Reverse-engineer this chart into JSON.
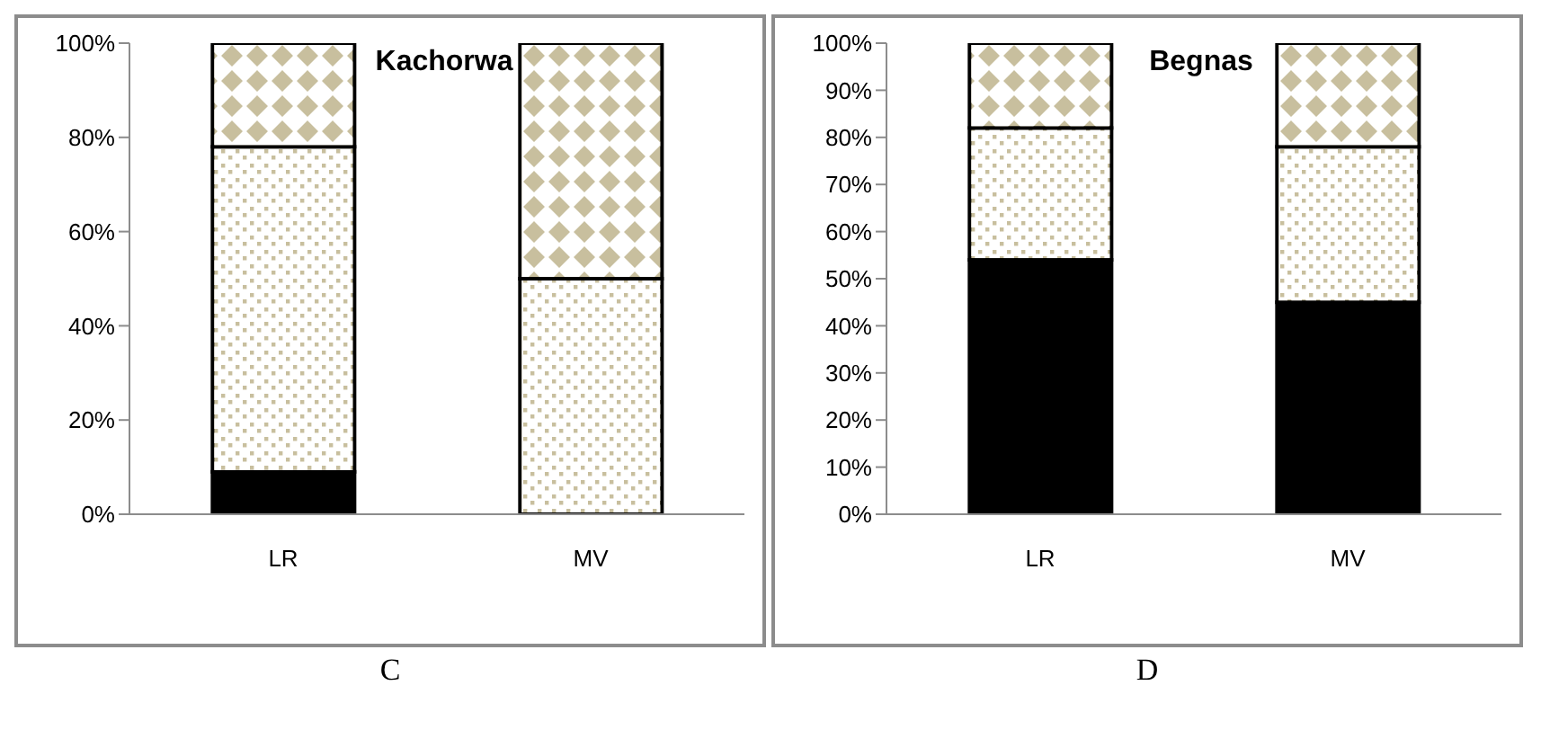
{
  "chart_data": [
    {
      "type": "bar",
      "title": "Kachorwa",
      "categories": [
        "LR",
        "MV"
      ],
      "stacked": true,
      "series": [
        {
          "color": "#000000",
          "values": [
            9,
            0
          ]
        },
        {
          "color": "#c8bf9e",
          "values": [
            69,
            50
          ]
        },
        {
          "color": "#c8bf9e",
          "values": [
            22,
            50
          ]
        }
      ],
      "ylim": [
        0,
        100
      ],
      "yticks": [
        {
          "value": 0,
          "label": "0%"
        },
        {
          "value": 20,
          "label": "20%"
        },
        {
          "value": 40,
          "label": "40%"
        },
        {
          "value": 60,
          "label": "60%"
        },
        {
          "value": 80,
          "label": "80%"
        },
        {
          "value": 100,
          "label": "100%"
        }
      ],
      "grid": false,
      "legend": false,
      "annotations": [
        "C"
      ]
    },
    {
      "type": "bar",
      "title": "Begnas",
      "categories": [
        "LR",
        "MV"
      ],
      "stacked": true,
      "series": [
        {
          "color": "#000000",
          "values": [
            54,
            45
          ]
        },
        {
          "color": "#c8bf9e",
          "values": [
            28,
            33
          ]
        },
        {
          "color": "#c8bf9e",
          "values": [
            18,
            22
          ]
        }
      ],
      "ylim": [
        0,
        100
      ],
      "yticks": [
        {
          "value": 0,
          "label": "0%"
        },
        {
          "value": 10,
          "label": "10%"
        },
        {
          "value": 20,
          "label": "20%"
        },
        {
          "value": 30,
          "label": "30%"
        },
        {
          "value": 40,
          "label": "40%"
        },
        {
          "value": 50,
          "label": "50%"
        },
        {
          "value": 60,
          "label": "60%"
        },
        {
          "value": 70,
          "label": "70%"
        },
        {
          "value": 80,
          "label": "80%"
        },
        {
          "value": 90,
          "label": "90%"
        },
        {
          "value": 100,
          "label": "100%"
        }
      ],
      "grid": false,
      "legend": false,
      "annotations": [
        "D"
      ]
    }
  ]
}
